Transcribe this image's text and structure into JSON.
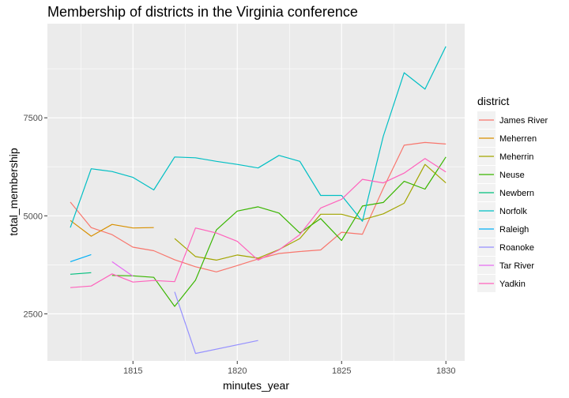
{
  "chart_data": {
    "type": "line",
    "title": "Membership of districts in the Virginia conference",
    "xlabel": "minutes_year",
    "ylabel": "total_membership",
    "xlim": [
      1810.9,
      1830.9
    ],
    "ylim": [
      1300,
      9900
    ],
    "x_ticks": [
      1815,
      1820,
      1825,
      1830
    ],
    "y_ticks": [
      2500,
      5000,
      7500
    ],
    "grid": true,
    "legend": {
      "title": "district",
      "position": "right"
    },
    "series": [
      {
        "name": "James River",
        "color": "#F8766D",
        "points": [
          [
            1812,
            5350
          ],
          [
            1813,
            4700
          ],
          [
            1814,
            4520
          ],
          [
            1815,
            4200
          ],
          [
            1816,
            4110
          ],
          [
            1817,
            3880
          ],
          [
            1818,
            3700
          ],
          [
            1819,
            3570
          ],
          [
            1820,
            3730
          ],
          [
            1821,
            3900
          ],
          [
            1822,
            4040
          ],
          [
            1823,
            4090
          ],
          [
            1824,
            4130
          ],
          [
            1825,
            4580
          ],
          [
            1826,
            4530
          ],
          [
            1827,
            5700
          ],
          [
            1828,
            6800
          ],
          [
            1829,
            6870
          ],
          [
            1830,
            6830
          ]
        ]
      },
      {
        "name": "Meherren",
        "color": "#D89000",
        "points": [
          [
            1812,
            4880
          ],
          [
            1813,
            4480
          ],
          [
            1814,
            4780
          ],
          [
            1815,
            4690
          ],
          [
            1816,
            4700
          ]
        ]
      },
      {
        "name": "Meherrin",
        "color": "#A3A500",
        "points": [
          [
            1817,
            4420
          ],
          [
            1818,
            3960
          ],
          [
            1819,
            3870
          ],
          [
            1820,
            4000
          ],
          [
            1821,
            3920
          ],
          [
            1822,
            4140
          ],
          [
            1823,
            4420
          ],
          [
            1824,
            5040
          ],
          [
            1825,
            5040
          ],
          [
            1826,
            4900
          ],
          [
            1827,
            5050
          ],
          [
            1828,
            5320
          ],
          [
            1829,
            6310
          ],
          [
            1830,
            5840
          ]
        ]
      },
      {
        "name": "Neuse",
        "color": "#39B600",
        "points": [
          [
            1814,
            3480
          ],
          [
            1815,
            3470
          ],
          [
            1816,
            3430
          ],
          [
            1817,
            2690
          ],
          [
            1818,
            3360
          ],
          [
            1819,
            4640
          ],
          [
            1820,
            5120
          ],
          [
            1821,
            5230
          ],
          [
            1822,
            5070
          ],
          [
            1823,
            4560
          ],
          [
            1824,
            4930
          ],
          [
            1825,
            4370
          ],
          [
            1826,
            5250
          ],
          [
            1827,
            5340
          ],
          [
            1828,
            5880
          ],
          [
            1829,
            5680
          ],
          [
            1830,
            6500
          ]
        ]
      },
      {
        "name": "Newbern",
        "color": "#00BF7D",
        "points": [
          [
            1812,
            3510
          ],
          [
            1813,
            3550
          ]
        ]
      },
      {
        "name": "Norfolk",
        "color": "#00BFC4",
        "points": [
          [
            1812,
            4700
          ],
          [
            1813,
            6200
          ],
          [
            1814,
            6130
          ],
          [
            1815,
            5980
          ],
          [
            1816,
            5660
          ],
          [
            1817,
            6500
          ],
          [
            1818,
            6480
          ],
          [
            1819,
            6390
          ],
          [
            1820,
            6310
          ],
          [
            1821,
            6220
          ],
          [
            1822,
            6540
          ],
          [
            1823,
            6390
          ],
          [
            1824,
            5520
          ],
          [
            1825,
            5520
          ],
          [
            1826,
            4860
          ],
          [
            1827,
            7030
          ],
          [
            1828,
            8650
          ],
          [
            1829,
            8230
          ],
          [
            1830,
            9320
          ]
        ]
      },
      {
        "name": "Raleigh",
        "color": "#00B0F6",
        "points": [
          [
            1812,
            3830
          ],
          [
            1813,
            4010
          ]
        ]
      },
      {
        "name": "Roanoke",
        "color": "#9590FF",
        "points": [
          [
            1817,
            3060
          ],
          [
            1818,
            1490
          ],
          [
            1821,
            1820
          ]
        ]
      },
      {
        "name": "Tar River",
        "color": "#E76BF3",
        "points": [
          [
            1814,
            3830
          ],
          [
            1815,
            3460
          ]
        ]
      },
      {
        "name": "Yadkin",
        "color": "#FF62BC",
        "points": [
          [
            1812,
            3170
          ],
          [
            1813,
            3210
          ],
          [
            1814,
            3520
          ],
          [
            1815,
            3310
          ],
          [
            1816,
            3350
          ],
          [
            1817,
            3320
          ],
          [
            1818,
            4690
          ],
          [
            1819,
            4560
          ],
          [
            1820,
            4350
          ],
          [
            1821,
            3870
          ],
          [
            1822,
            4130
          ],
          [
            1823,
            4520
          ],
          [
            1824,
            5200
          ],
          [
            1825,
            5420
          ],
          [
            1826,
            5930
          ],
          [
            1827,
            5840
          ],
          [
            1828,
            6090
          ],
          [
            1829,
            6460
          ],
          [
            1830,
            6120
          ]
        ]
      }
    ]
  }
}
